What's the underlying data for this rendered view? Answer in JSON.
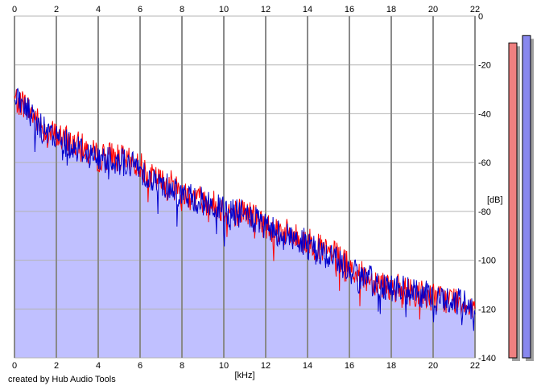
{
  "chart_data": {
    "type": "area",
    "xlabel": "[kHz]",
    "ylabel": "[dB]",
    "xlim": [
      0,
      22
    ],
    "ylim": [
      -140,
      0
    ],
    "x_ticks": [
      0,
      2,
      4,
      6,
      8,
      10,
      12,
      14,
      16,
      18,
      20,
      22
    ],
    "y_ticks": [
      0,
      -20,
      -40,
      -60,
      -80,
      -100,
      -120,
      -140
    ],
    "grid": true,
    "colors": {
      "series_a": "#ff0000",
      "series_b": "#0000cc",
      "fill": "#c0c0ff",
      "meter_a": "#f08080",
      "meter_b": "#8888ee"
    },
    "series": [
      {
        "color": "#ff0000",
        "x": [
          0,
          0.5,
          1,
          1.5,
          2,
          2.5,
          3,
          3.5,
          4,
          4.5,
          5,
          5.5,
          6,
          6.5,
          7,
          7.5,
          8,
          8.5,
          9,
          9.5,
          10,
          10.5,
          11,
          11.5,
          12,
          12.5,
          13,
          13.5,
          14,
          14.5,
          15,
          15.5,
          16,
          16.5,
          17,
          17.5,
          18,
          18.5,
          19,
          19.5,
          20,
          20.5,
          21,
          21.5,
          22
        ],
        "values": [
          -34,
          -36,
          -42,
          -47,
          -49,
          -51,
          -53,
          -55,
          -58,
          -57,
          -58,
          -60,
          -61,
          -66,
          -68,
          -69,
          -72,
          -74,
          -75,
          -77,
          -79,
          -80,
          -80,
          -82,
          -86,
          -87,
          -89,
          -91,
          -92,
          -95,
          -97,
          -99,
          -103,
          -106,
          -108,
          -109,
          -111,
          -112,
          -113,
          -114,
          -115,
          -116,
          -116,
          -117,
          -119
        ]
      },
      {
        "color": "#0000cc",
        "x": [
          0,
          0.5,
          1,
          1.5,
          2,
          2.5,
          3,
          3.5,
          4,
          4.5,
          5,
          5.5,
          6,
          6.5,
          7,
          7.5,
          8,
          8.5,
          9,
          9.5,
          10,
          10.5,
          11,
          11.5,
          12,
          12.5,
          13,
          13.5,
          14,
          14.5,
          15,
          15.5,
          16,
          16.5,
          17,
          17.5,
          18,
          18.5,
          19,
          19.5,
          20,
          20.5,
          21,
          21.5,
          22
        ],
        "values": [
          -35,
          -37,
          -43,
          -48,
          -50,
          -52,
          -54,
          -56,
          -59,
          -58,
          -59,
          -61,
          -62,
          -67,
          -69,
          -70,
          -73,
          -75,
          -76,
          -78,
          -80,
          -81,
          -81,
          -84,
          -87,
          -88,
          -90,
          -92,
          -93,
          -96,
          -98,
          -100,
          -104,
          -107,
          -108,
          -110,
          -111,
          -112,
          -113,
          -114,
          -115,
          -116,
          -117,
          -118,
          -119
        ]
      }
    ],
    "meters": [
      {
        "color": "#f08080",
        "value": -11
      },
      {
        "color": "#8888ee",
        "value": -8
      }
    ]
  },
  "footer": {
    "credit": "created by Hub Audio Tools"
  }
}
